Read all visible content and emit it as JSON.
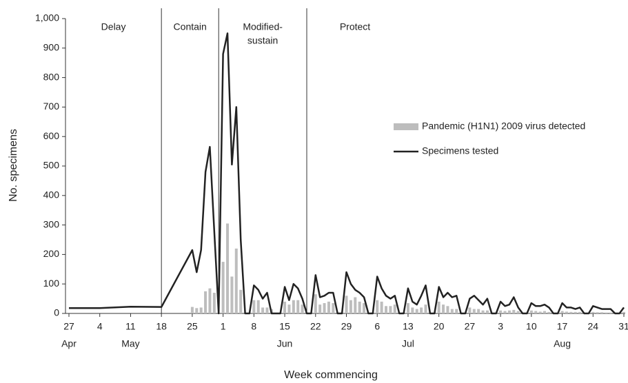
{
  "chart_data": {
    "type": "bar-line",
    "ylabel": "No. specimens",
    "xlabel": "Week commencing",
    "xlim": [
      "Apr 27",
      "Aug 31"
    ],
    "ylim": [
      0,
      1000
    ],
    "yticks": [
      0,
      100,
      200,
      300,
      400,
      500,
      600,
      700,
      800,
      900,
      {
        "value": 1000,
        "label": "1,000"
      }
    ],
    "xticks": [
      {
        "value": "Apr 27",
        "label": "27"
      },
      {
        "value": "May 4",
        "label": "4"
      },
      {
        "value": "May 11",
        "label": "11"
      },
      {
        "value": "May 18",
        "label": "18"
      },
      {
        "value": "May 25",
        "label": "25"
      },
      {
        "value": "Jun 1",
        "label": "1"
      },
      {
        "value": "Jun 8",
        "label": "8"
      },
      {
        "value": "Jun 15",
        "label": "15"
      },
      {
        "value": "Jun 22",
        "label": "22"
      },
      {
        "value": "Jun 29",
        "label": "29"
      },
      {
        "value": "Jul 6",
        "label": "6"
      },
      {
        "value": "Jul 13",
        "label": "13"
      },
      {
        "value": "Jul 20",
        "label": "20"
      },
      {
        "value": "Jul 27",
        "label": "27"
      },
      {
        "value": "Aug 3",
        "label": "3"
      },
      {
        "value": "Aug 10",
        "label": "10"
      },
      {
        "value": "Aug 17",
        "label": "17"
      },
      {
        "value": "Aug 24",
        "label": "24"
      },
      {
        "value": "Aug 31",
        "label": "31"
      }
    ],
    "month_labels": [
      {
        "value": "Apr 27",
        "label": "Apr"
      },
      {
        "value": "May 11",
        "label": "May"
      },
      {
        "value": "Jun 15",
        "label": "Jun"
      },
      {
        "value": "Jul 13",
        "label": "Jul"
      },
      {
        "value": "Aug 17",
        "label": "Aug"
      }
    ],
    "phases": [
      {
        "label": [
          "Delay"
        ],
        "start": "Apr 27"
      },
      {
        "label": [
          "Contain"
        ],
        "start": "May 18"
      },
      {
        "label": [
          "Modified-",
          "sustain"
        ],
        "start": "May 31"
      },
      {
        "label": [
          "Protect"
        ],
        "start": "Jun 20"
      }
    ],
    "legend": "right",
    "x": [
      "Apr 27",
      "May 4",
      "May 11",
      "May 18",
      "May 25",
      "May 26",
      "May 27",
      "May 28",
      "May 29",
      "May 30",
      "May 31",
      "Jun 1",
      "Jun 2",
      "Jun 3",
      "Jun 4",
      "Jun 5",
      "Jun 6",
      "Jun 7",
      "Jun 8",
      "Jun 9",
      "Jun 10",
      "Jun 11",
      "Jun 12",
      "Jun 13",
      "Jun 14",
      "Jun 15",
      "Jun 16",
      "Jun 17",
      "Jun 18",
      "Jun 19",
      "Jun 20",
      "Jun 21",
      "Jun 22",
      "Jun 23",
      "Jun 24",
      "Jun 25",
      "Jun 26",
      "Jun 27",
      "Jun 28",
      "Jun 29",
      "Jun 30",
      "Jul 1",
      "Jul 2",
      "Jul 3",
      "Jul 4",
      "Jul 5",
      "Jul 6",
      "Jul 7",
      "Jul 8",
      "Jul 9",
      "Jul 10",
      "Jul 11",
      "Jul 12",
      "Jul 13",
      "Jul 14",
      "Jul 15",
      "Jul 16",
      "Jul 17",
      "Jul 18",
      "Jul 19",
      "Jul 20",
      "Jul 21",
      "Jul 22",
      "Jul 23",
      "Jul 24",
      "Jul 25",
      "Jul 26",
      "Jul 27",
      "Jul 28",
      "Jul 29",
      "Jul 30",
      "Jul 31",
      "Aug 1",
      "Aug 2",
      "Aug 3",
      "Aug 4",
      "Aug 5",
      "Aug 6",
      "Aug 7",
      "Aug 8",
      "Aug 9",
      "Aug 10",
      "Aug 11",
      "Aug 12",
      "Aug 13",
      "Aug 14",
      "Aug 15",
      "Aug 16",
      "Aug 17",
      "Aug 18",
      "Aug 19",
      "Aug 20",
      "Aug 21",
      "Aug 22",
      "Aug 23",
      "Aug 24",
      "Aug 25",
      "Aug 26",
      "Aug 27",
      "Aug 28",
      "Aug 29",
      "Aug 30",
      "Aug 31"
    ],
    "series": [
      {
        "name": "Pandemic (H1N1)  2009 virus detected",
        "kind": "bar",
        "color": "#bdbdbd",
        "values": [
          null,
          null,
          null,
          null,
          22,
          18,
          20,
          75,
          85,
          70,
          null,
          175,
          305,
          125,
          220,
          80,
          null,
          null,
          45,
          45,
          20,
          20,
          15,
          null,
          null,
          40,
          30,
          45,
          45,
          30,
          null,
          null,
          65,
          30,
          35,
          40,
          35,
          null,
          null,
          60,
          45,
          55,
          40,
          35,
          null,
          null,
          45,
          40,
          25,
          25,
          30,
          null,
          null,
          35,
          20,
          15,
          20,
          30,
          null,
          null,
          40,
          30,
          25,
          15,
          15,
          null,
          null,
          20,
          15,
          15,
          10,
          10,
          null,
          null,
          10,
          8,
          10,
          12,
          8,
          null,
          null,
          10,
          8,
          6,
          8,
          5,
          null,
          null,
          8,
          6,
          5,
          5,
          5,
          null,
          null,
          5,
          4,
          4,
          3,
          3,
          null,
          null,
          5
        ]
      },
      {
        "name": "Specimens tested",
        "kind": "line",
        "color": "#222222",
        "values": [
          18,
          18,
          23,
          22,
          215,
          140,
          215,
          480,
          565,
          280,
          0,
          880,
          950,
          505,
          700,
          250,
          0,
          0,
          95,
          80,
          50,
          70,
          0,
          0,
          0,
          90,
          45,
          100,
          85,
          50,
          0,
          0,
          130,
          55,
          60,
          70,
          70,
          0,
          0,
          140,
          100,
          80,
          70,
          55,
          0,
          0,
          125,
          85,
          60,
          50,
          60,
          0,
          0,
          85,
          40,
          30,
          60,
          95,
          0,
          0,
          90,
          55,
          70,
          55,
          60,
          0,
          0,
          50,
          60,
          45,
          30,
          50,
          0,
          0,
          40,
          25,
          30,
          55,
          20,
          0,
          0,
          35,
          25,
          25,
          30,
          20,
          0,
          0,
          35,
          20,
          20,
          15,
          20,
          0,
          0,
          25,
          20,
          15,
          15,
          15,
          0,
          0,
          20
        ]
      }
    ]
  }
}
